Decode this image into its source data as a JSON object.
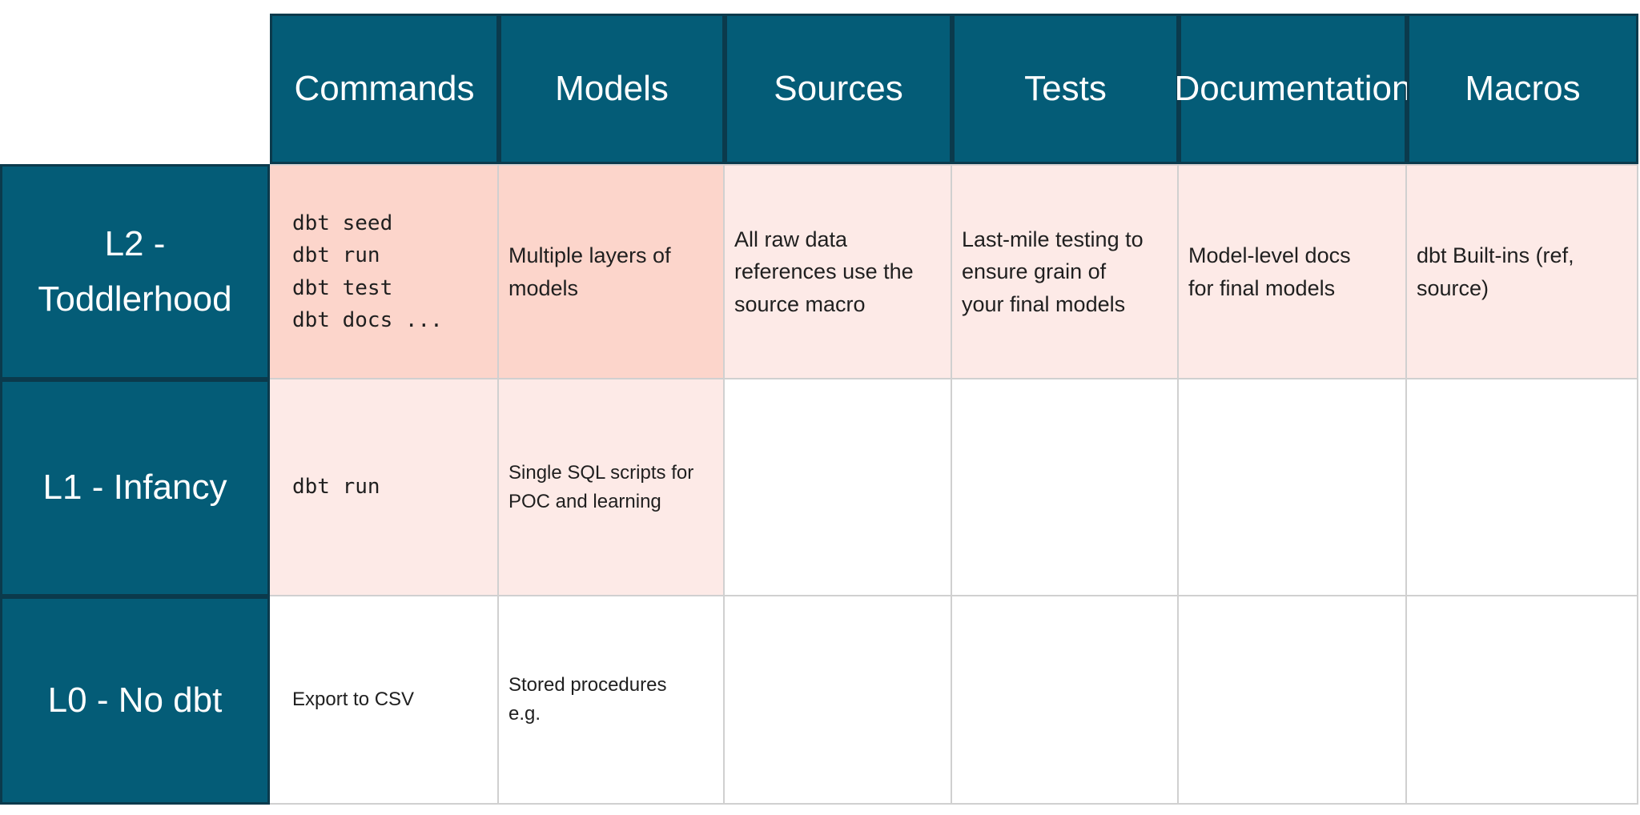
{
  "table": {
    "column_headers": [
      "Commands",
      "Models",
      "Sources",
      "Tests",
      "Documentation",
      "Macros"
    ],
    "rows": [
      {
        "id": "l2",
        "label": "L2 -\nToddlerhood",
        "cells": [
          {
            "column": "Commands",
            "text": "dbt seed\ndbt run\ndbt test\ndbt docs ...",
            "style": "mono",
            "bg": "salmon"
          },
          {
            "column": "Models",
            "text": "Multiple layers of\nmodels",
            "style": "body",
            "bg": "salmon"
          },
          {
            "column": "Sources",
            "text": "All raw data\nreferences use the\nsource macro",
            "style": "body",
            "bg": "blush"
          },
          {
            "column": "Tests",
            "text": "Last-mile testing to\nensure grain of\nyour final models",
            "style": "body",
            "bg": "blush"
          },
          {
            "column": "Documentation",
            "text": "Model-level docs\nfor final models",
            "style": "body",
            "bg": "blush"
          },
          {
            "column": "Macros",
            "text": "dbt Built-ins (ref,\nsource)",
            "style": "body",
            "bg": "blush"
          }
        ]
      },
      {
        "id": "l1",
        "label": "L1 - Infancy",
        "cells": [
          {
            "column": "Commands",
            "text": "dbt run",
            "style": "mono",
            "bg": "blush"
          },
          {
            "column": "Models",
            "text": "Single SQL scripts for\nPOC and learning",
            "style": "body-small",
            "bg": "blush"
          },
          {
            "column": "Sources",
            "text": "",
            "style": "body",
            "bg": "white"
          },
          {
            "column": "Tests",
            "text": "",
            "style": "body",
            "bg": "white"
          },
          {
            "column": "Documentation",
            "text": "",
            "style": "body",
            "bg": "white"
          },
          {
            "column": "Macros",
            "text": "",
            "style": "body",
            "bg": "white"
          }
        ]
      },
      {
        "id": "l0",
        "label": "L0 - No dbt",
        "cells": [
          {
            "column": "Commands",
            "text": "Export to CSV",
            "style": "body-small",
            "bg": "white"
          },
          {
            "column": "Models",
            "text": "Stored procedures\ne.g.",
            "style": "body-small",
            "bg": "white"
          },
          {
            "column": "Sources",
            "text": "",
            "style": "body",
            "bg": "white"
          },
          {
            "column": "Tests",
            "text": "",
            "style": "body",
            "bg": "white"
          },
          {
            "column": "Documentation",
            "text": "",
            "style": "body",
            "bg": "white"
          },
          {
            "column": "Macros",
            "text": "",
            "style": "body",
            "bg": "white"
          }
        ]
      }
    ],
    "colors": {
      "header_fill": "#045C77",
      "header_border": "#0B3A4C",
      "header_text": "#FFFFFF",
      "cell_highlight_strong": "#FCD5CB",
      "cell_highlight_light": "#FDEAE7",
      "grid_line": "#D0D0D0",
      "body_text": "#1F1F1F"
    }
  }
}
